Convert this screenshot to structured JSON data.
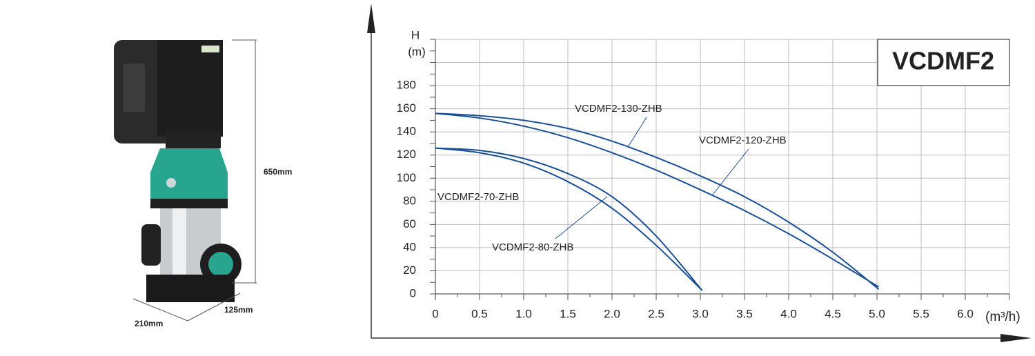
{
  "chart_data": {
    "type": "line",
    "title": "VCDMF2",
    "y_label": "H",
    "y_unit": "(m)",
    "x_label": "(m³/h)",
    "xlim": [
      0,
      6.5
    ],
    "ylim": [
      0,
      220
    ],
    "xticks": [
      0,
      0.5,
      {
        "value": 1,
        "label": "1.0"
      },
      1.5,
      {
        "value": 2,
        "label": "2.0"
      },
      2.5,
      {
        "value": 3,
        "label": "3.0"
      },
      3.5,
      {
        "value": 4,
        "label": "4.0"
      },
      4.5,
      {
        "value": 5,
        "label": "5.0"
      },
      5.5,
      {
        "value": 6,
        "label": "6.0"
      }
    ],
    "yticks": [
      0,
      20,
      40,
      60,
      80,
      100,
      120,
      140,
      160,
      180
    ],
    "grid": true,
    "series": [
      {
        "name": "VCDMF2-130-ZHB",
        "color": "#1b4f93",
        "x": [
          0,
          0.5,
          1,
          1.5,
          2,
          2.5,
          3,
          3.5,
          4,
          4.5,
          5.02
        ],
        "values": [
          156,
          154,
          150,
          143,
          132,
          118,
          102,
          84,
          62,
          36,
          4
        ]
      },
      {
        "name": "VCDMF2-120-ZHB",
        "color": "#1b4f93",
        "x": [
          0,
          0.5,
          1,
          1.5,
          2,
          2.5,
          3,
          3.5,
          4,
          4.5,
          5.02
        ],
        "values": [
          156,
          152,
          145,
          135,
          122,
          107,
          90,
          72,
          52,
          30,
          6
        ]
      },
      {
        "name": "VCDMF2-80-ZHB",
        "color": "#1b4f93",
        "x": [
          0,
          0.5,
          1,
          1.5,
          2,
          2.5,
          3.02
        ],
        "values": [
          126,
          124,
          117,
          104,
          84,
          50,
          3
        ]
      },
      {
        "name": "VCDMF2-70-ZHB",
        "color": "#1b4f93",
        "x": [
          0,
          0.5,
          1,
          1.5,
          2,
          2.5,
          3.02
        ],
        "values": [
          126,
          122,
          113,
          97,
          74,
          42,
          3
        ]
      }
    ]
  },
  "product": {
    "dimensions": [
      "650mm",
      "125mm",
      "210mm"
    ]
  }
}
